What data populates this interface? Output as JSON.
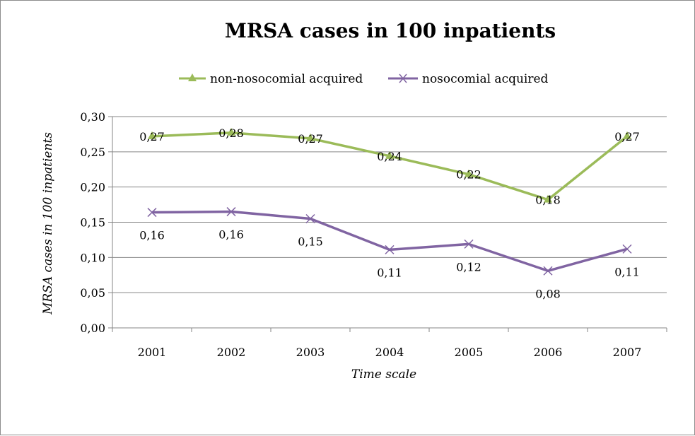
{
  "chart_data": {
    "type": "line",
    "title": "MRSA cases in 100 inpatients",
    "xlabel": "Time scale",
    "ylabel": "MRSA cases in 100 inpatients",
    "categories": [
      "2001",
      "2002",
      "2003",
      "2004",
      "2005",
      "2006",
      "2007"
    ],
    "ylim": [
      0,
      0.3
    ],
    "yticks": [
      "0,00",
      "0,05",
      "0,10",
      "0,15",
      "0,20",
      "0,25",
      "0,30"
    ],
    "grid": true,
    "legend_position": "top",
    "series": [
      {
        "name": "non-nosocomial acquired",
        "values": [
          0.272,
          0.277,
          0.269,
          0.244,
          0.218,
          0.182,
          0.272
        ],
        "labels": [
          "0,27",
          "0,28",
          "0,27",
          "0,24",
          "0,22",
          "0,18",
          "0,27"
        ],
        "color": "#9bbb59",
        "marker": "triangle"
      },
      {
        "name": "nosocomial acquired",
        "values": [
          0.164,
          0.165,
          0.155,
          0.111,
          0.119,
          0.081,
          0.112
        ],
        "labels": [
          "0,16",
          "0,16",
          "0,15",
          "0,11",
          "0,12",
          "0,08",
          "0,11"
        ],
        "color": "#8064a2",
        "marker": "x"
      }
    ]
  }
}
